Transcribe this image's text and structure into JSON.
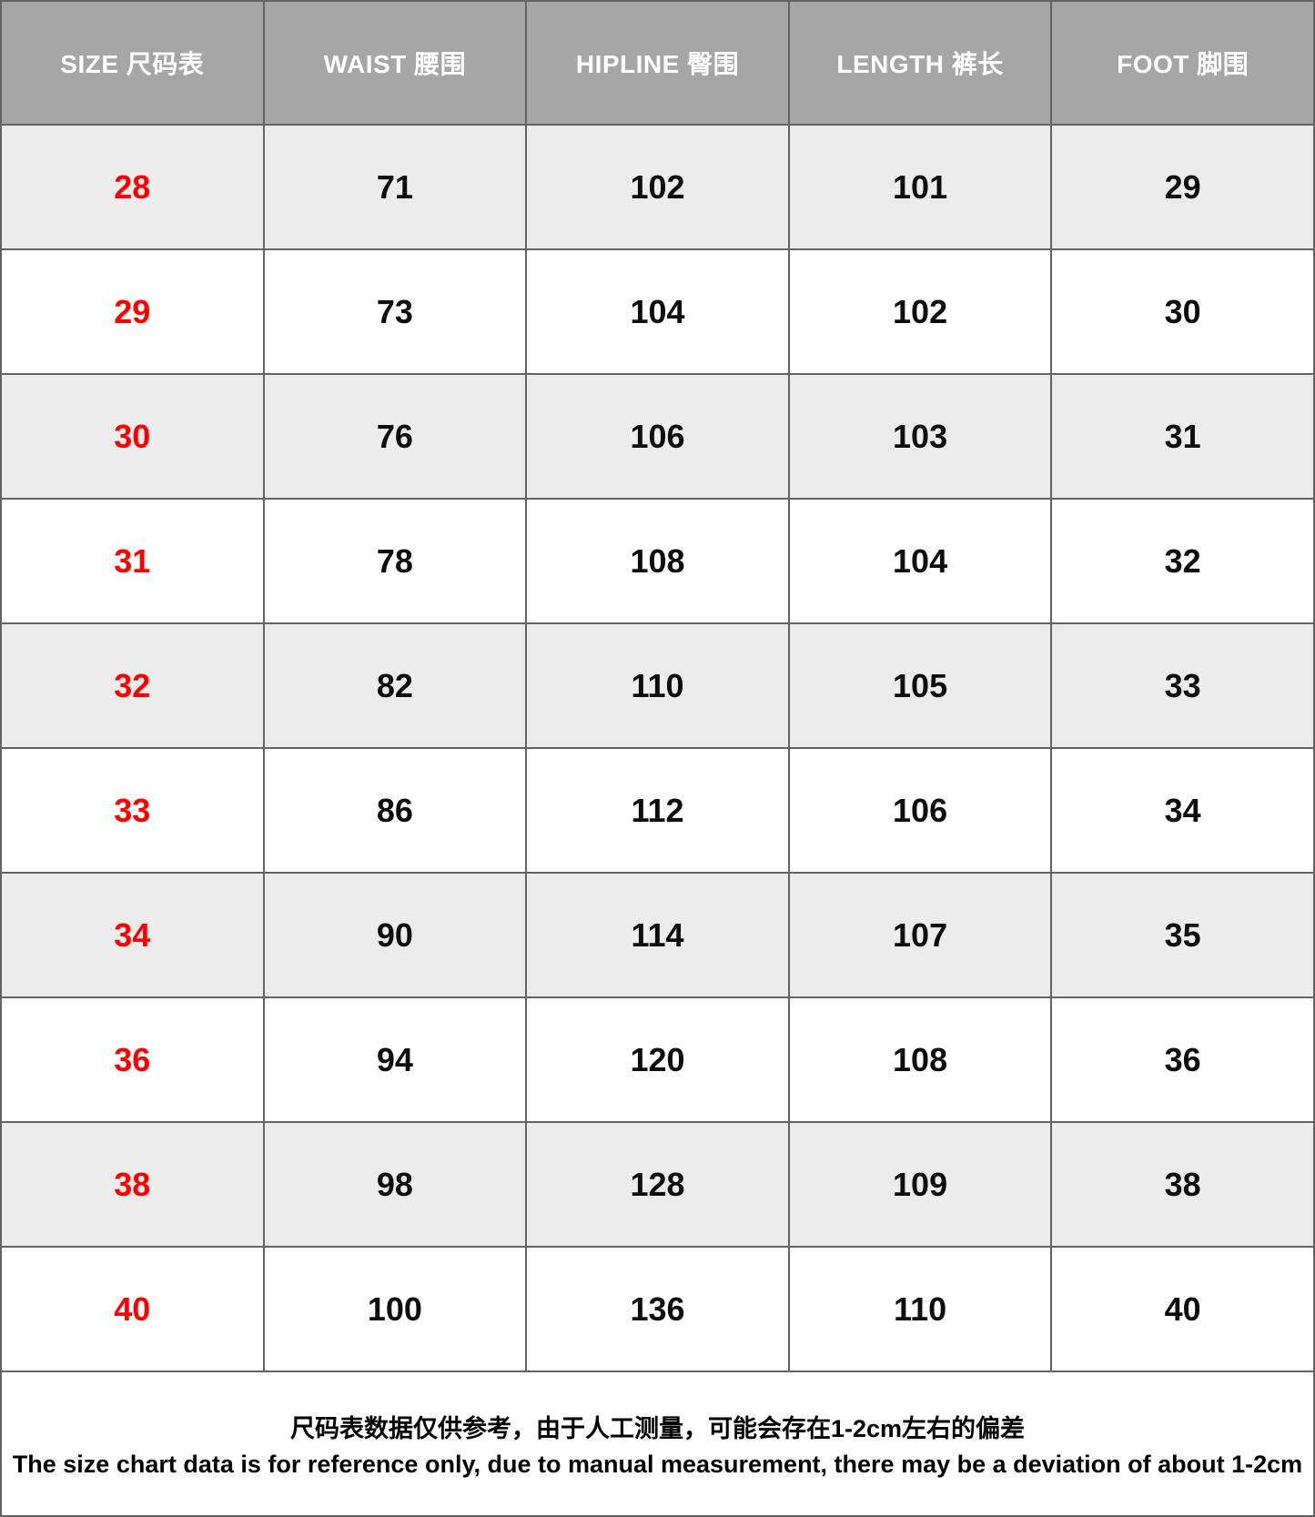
{
  "table": {
    "columns": [
      {
        "key": "size",
        "label": "SIZE 尺码表"
      },
      {
        "key": "waist",
        "label": "WAIST 腰围"
      },
      {
        "key": "hipline",
        "label": "HIPLINE 臀围"
      },
      {
        "key": "length",
        "label": "LENGTH 裤长"
      },
      {
        "key": "foot",
        "label": "FOOT 脚围"
      }
    ],
    "rows": [
      {
        "size": "28",
        "waist": "71",
        "hipline": "102",
        "length": "101",
        "foot": "29"
      },
      {
        "size": "29",
        "waist": "73",
        "hipline": "104",
        "length": "102",
        "foot": "30"
      },
      {
        "size": "30",
        "waist": "76",
        "hipline": "106",
        "length": "103",
        "foot": "31"
      },
      {
        "size": "31",
        "waist": "78",
        "hipline": "108",
        "length": "104",
        "foot": "32"
      },
      {
        "size": "32",
        "waist": "82",
        "hipline": "110",
        "length": "105",
        "foot": "33"
      },
      {
        "size": "33",
        "waist": "86",
        "hipline": "112",
        "length": "106",
        "foot": "34"
      },
      {
        "size": "34",
        "waist": "90",
        "hipline": "114",
        "length": "107",
        "foot": "35"
      },
      {
        "size": "36",
        "waist": "94",
        "hipline": "120",
        "length": "108",
        "foot": "36"
      },
      {
        "size": "38",
        "waist": "98",
        "hipline": "128",
        "length": "109",
        "foot": "38"
      },
      {
        "size": "40",
        "waist": "100",
        "hipline": "136",
        "length": "110",
        "foot": "40"
      }
    ]
  },
  "footer": {
    "note_zh": "尺码表数据仅供参考，由于人工测量，可能会存在1-2cm左右的偏差",
    "note_en": "The size chart data is for reference only, due to manual measurement, there may be a deviation of about 1-2cm"
  },
  "colors": {
    "header_bg": "#a6a6a6",
    "header_text": "#ffffff",
    "row_alt_bg": "#ececec",
    "row_bg": "#ffffff",
    "size_text": "#fe0000",
    "body_text": "#0d0d0d",
    "border": "#636363"
  },
  "chart_data": {
    "type": "table",
    "title": "SIZE 尺码表 (size chart, cm)",
    "columns": [
      "SIZE 尺码表",
      "WAIST 腰围",
      "HIPLINE 臀围",
      "LENGTH 裤长",
      "FOOT 脚围"
    ],
    "rows": [
      [
        28,
        71,
        102,
        101,
        29
      ],
      [
        29,
        73,
        104,
        102,
        30
      ],
      [
        30,
        76,
        106,
        103,
        31
      ],
      [
        31,
        78,
        108,
        104,
        32
      ],
      [
        32,
        82,
        110,
        105,
        33
      ],
      [
        33,
        86,
        112,
        106,
        34
      ],
      [
        34,
        90,
        114,
        107,
        35
      ],
      [
        36,
        94,
        120,
        108,
        36
      ],
      [
        38,
        98,
        128,
        109,
        38
      ],
      [
        40,
        100,
        136,
        110,
        40
      ]
    ],
    "layout_hints": {
      "header_style": "gray background, white bold text",
      "size_column_color": "red",
      "alternating_rows": "gray / white starting gray",
      "footnote_rows": 1
    }
  }
}
